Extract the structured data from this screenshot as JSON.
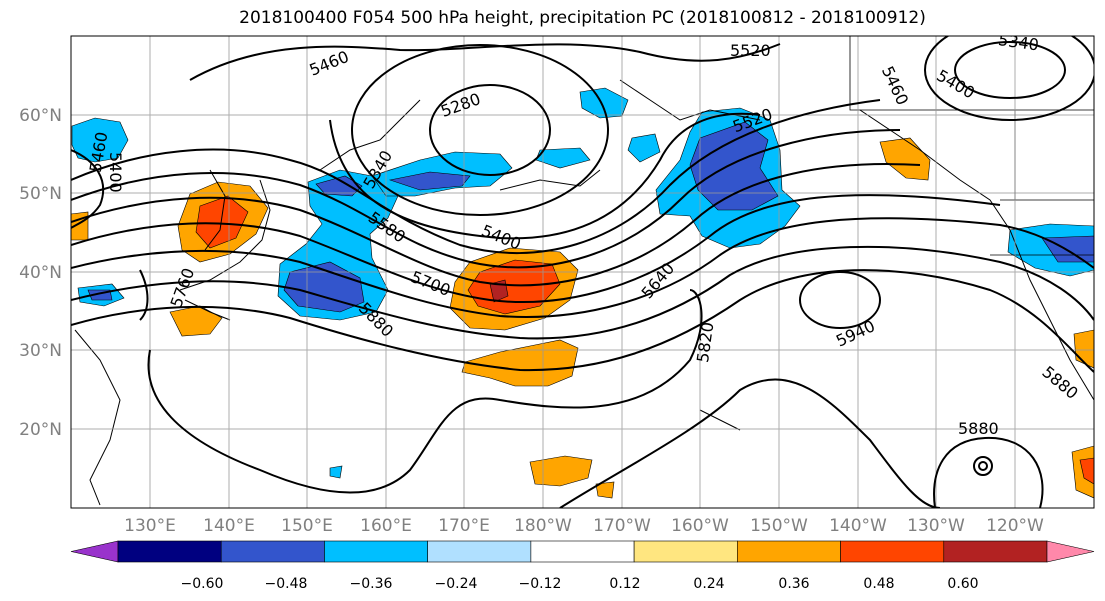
{
  "title": "2018100400 F054 500 hPa height, precipitation PC (2018100812 - 2018100912)",
  "lat_labels": [
    "60°N",
    "50°N",
    "40°N",
    "30°N",
    "20°N"
  ],
  "lon_labels": [
    "130°E",
    "140°E",
    "150°E",
    "160°E",
    "170°E",
    "180°W",
    "170°W",
    "160°W",
    "150°W",
    "140°W",
    "130°W",
    "120°W"
  ],
  "contour_labels": [
    "5460",
    "5520",
    "5340",
    "5400",
    "5280",
    "5340",
    "5460",
    "5400",
    "5460",
    "5520",
    "5580",
    "5400",
    "5640",
    "5700",
    "5760",
    "5880",
    "5820",
    "5940",
    "5880",
    "5880"
  ],
  "colorbar": {
    "ticks": [
      "−0.60",
      "−0.48",
      "−0.36",
      "−0.24",
      "−0.12",
      "0.12",
      "0.24",
      "0.36",
      "0.48",
      "0.60"
    ],
    "colors": [
      "#9933cc",
      "#000080",
      "#3355cc",
      "#00bfff",
      "#b0e0ff",
      "#ffffff",
      "#ffe680",
      "#ffa500",
      "#ff4500",
      "#b22222",
      "#ff88aa"
    ]
  },
  "colors": {
    "contour": "#000000",
    "grid": "#999999",
    "axis_label": "#808080"
  }
}
